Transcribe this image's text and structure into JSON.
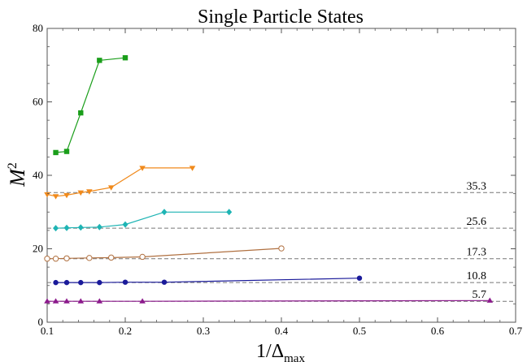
{
  "chart_data": {
    "type": "line",
    "title": "Single Particle States",
    "xlabel": "1/Δ",
    "xlabel_sub": "max",
    "ylabel": "M",
    "ylabel_sup": "2",
    "xlim": [
      0.1,
      0.7
    ],
    "ylim": [
      0,
      80
    ],
    "xticks": [
      0.1,
      0.2,
      0.3,
      0.4,
      0.5,
      0.6,
      0.7
    ],
    "xtick_labels": [
      "0.1",
      "0.2",
      "0.3",
      "0.4",
      "0.5",
      "0.6",
      "0.7"
    ],
    "yticks": [
      0,
      20,
      40,
      60,
      80
    ],
    "ytick_labels": [
      "0",
      "20",
      "40",
      "60",
      "80"
    ],
    "grid": false,
    "reference_lines": [
      {
        "value": 35.3,
        "label": "35.3"
      },
      {
        "value": 25.6,
        "label": "25.6"
      },
      {
        "value": 17.3,
        "label": "17.3"
      },
      {
        "value": 10.8,
        "label": "10.8"
      },
      {
        "value": 5.7,
        "label": "5.7"
      }
    ],
    "series": [
      {
        "color": "#1a9e1a",
        "marker": "square",
        "x": [
          0.111,
          0.125,
          0.143,
          0.167,
          0.2
        ],
        "y": [
          46.2,
          46.5,
          57.0,
          71.3,
          72.0
        ]
      },
      {
        "color": "#f08a1c",
        "marker": "triangle-down",
        "x": [
          0.1,
          0.111,
          0.125,
          0.143,
          0.154,
          0.182,
          0.222,
          0.286
        ],
        "y": [
          34.8,
          34.3,
          34.6,
          35.3,
          35.6,
          36.7,
          42.0,
          42.0
        ]
      },
      {
        "color": "#1eb4b4",
        "marker": "diamond",
        "x": [
          0.111,
          0.125,
          0.143,
          0.167,
          0.2,
          0.25,
          0.333
        ],
        "y": [
          25.6,
          25.7,
          25.8,
          25.9,
          26.6,
          30.0,
          30.0
        ]
      },
      {
        "color": "#b07040",
        "marker": "open-circle",
        "x": [
          0.1,
          0.111,
          0.125,
          0.154,
          0.182,
          0.222,
          0.4
        ],
        "y": [
          17.3,
          17.3,
          17.4,
          17.5,
          17.6,
          17.8,
          20.1
        ]
      },
      {
        "color": "#1a1a9a",
        "marker": "circle",
        "x": [
          0.111,
          0.125,
          0.143,
          0.167,
          0.2,
          0.25,
          0.5
        ],
        "y": [
          10.8,
          10.8,
          10.8,
          10.8,
          10.9,
          10.9,
          12.0
        ]
      },
      {
        "color": "#8c1a8c",
        "marker": "triangle-up",
        "x": [
          0.1,
          0.111,
          0.125,
          0.143,
          0.167,
          0.222,
          0.667
        ],
        "y": [
          5.7,
          5.7,
          5.7,
          5.7,
          5.7,
          5.7,
          5.9
        ]
      }
    ]
  }
}
